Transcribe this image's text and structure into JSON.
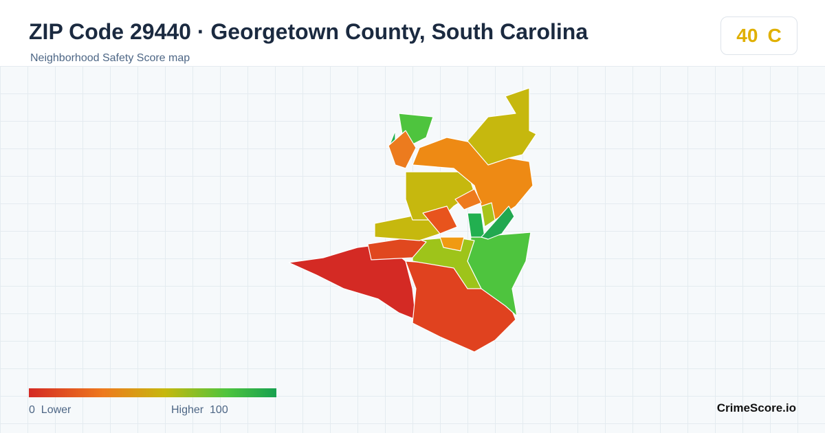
{
  "header": {
    "title": "ZIP Code 29440 · Georgetown County, South Carolina",
    "subtitle": "Neighborhood Safety Score map"
  },
  "score": {
    "value": 40,
    "grade": "C"
  },
  "legend": {
    "min": 0,
    "min_label": "Lower",
    "max_label": "Higher",
    "max": 100
  },
  "footer": {
    "brand": "CrimeScore.io"
  }
}
